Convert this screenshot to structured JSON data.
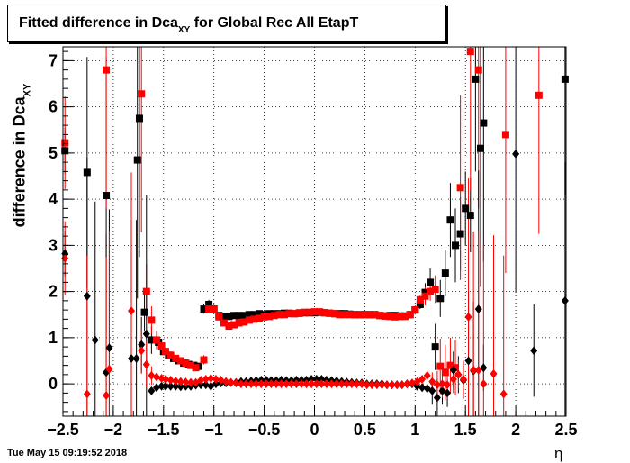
{
  "title": {
    "main": "Fitted difference in Dca",
    "sub": "XY",
    "rest": " for Global Rec All EtapT"
  },
  "ylabel": {
    "main": "difference in Dca",
    "sub": "XY"
  },
  "xlabel": "η",
  "timestamp": "Tue May 15 09:19:52 2018",
  "chart_data": {
    "type": "scatter",
    "xlim": [
      -2.5,
      2.5
    ],
    "ylim": [
      -0.7,
      7.3
    ],
    "grid": true,
    "xticks": [
      -2.5,
      -2,
      -1.5,
      -1,
      -0.5,
      0,
      0.5,
      1,
      1.5,
      2,
      2.5
    ],
    "xtick_labels": [
      "−2.5",
      "−2",
      "−1.5",
      "−1",
      "−0.5",
      "0",
      "0.5",
      "1",
      "1.5",
      "2",
      "2.5"
    ],
    "yticks": [
      0,
      1,
      2,
      3,
      4,
      5,
      6,
      7
    ],
    "ytick_labels": [
      "0",
      "1",
      "2",
      "3",
      "4",
      "5",
      "6",
      "7"
    ],
    "series": [
      {
        "color": "#000000",
        "marker": "square",
        "x": [
          -2.48,
          -2.26,
          -2.07,
          -1.76,
          -1.74,
          -1.69,
          -1.62,
          -1.55,
          -1.5,
          -1.45,
          -1.4,
          -1.35,
          -1.3,
          -1.25,
          -1.2,
          -1.15,
          -1.1,
          -1.05,
          -1.0,
          -0.95,
          -0.9,
          -0.85,
          -0.8,
          -0.75,
          -0.7,
          -0.65,
          -0.6,
          -0.55,
          -0.5,
          -0.45,
          -0.4,
          -0.35,
          -0.3,
          -0.25,
          -0.2,
          -0.15,
          -0.1,
          -0.05,
          0.0,
          0.05,
          0.1,
          0.15,
          0.2,
          0.25,
          0.3,
          0.35,
          0.4,
          0.45,
          0.5,
          0.55,
          0.6,
          0.65,
          0.7,
          0.75,
          0.8,
          0.85,
          0.9,
          0.95,
          1.0,
          1.05,
          1.1,
          1.15,
          1.2,
          1.25,
          1.3,
          1.35,
          1.4,
          1.45,
          1.5,
          1.55,
          1.6,
          1.65,
          1.68,
          2.49
        ],
        "y": [
          5.05,
          4.58,
          4.08,
          4.85,
          5.75,
          1.55,
          0.95,
          0.9,
          0.7,
          0.62,
          0.55,
          0.5,
          0.45,
          0.42,
          0.4,
          0.38,
          1.62,
          1.72,
          1.62,
          1.48,
          1.45,
          1.46,
          1.48,
          1.48,
          1.48,
          1.5,
          1.5,
          1.52,
          1.5,
          1.52,
          1.52,
          1.52,
          1.53,
          1.53,
          1.52,
          1.53,
          1.54,
          1.54,
          1.54,
          1.55,
          1.54,
          1.53,
          1.52,
          1.52,
          1.52,
          1.51,
          1.5,
          1.5,
          1.5,
          1.5,
          1.5,
          1.48,
          1.47,
          1.48,
          1.48,
          1.47,
          1.47,
          1.5,
          1.6,
          1.72,
          1.98,
          2.2,
          0.8,
          1.85,
          2.4,
          3.55,
          3.0,
          3.25,
          3.8,
          3.65,
          6.6,
          5.1,
          5.65,
          6.6
        ],
        "err": [
          0.5,
          2.5,
          3,
          3,
          3,
          0.4,
          0.3,
          0,
          0,
          0,
          0,
          0,
          0,
          0,
          0,
          0,
          0.1,
          0.1,
          0,
          0,
          0,
          0,
          0,
          0,
          0,
          0,
          0,
          0,
          0,
          0,
          0,
          0,
          0,
          0,
          0,
          0,
          0,
          0,
          0,
          0,
          0,
          0,
          0,
          0,
          0,
          0,
          0,
          0,
          0,
          0,
          0,
          0,
          0,
          0,
          0,
          0,
          0,
          0,
          0,
          0.1,
          0.2,
          0.3,
          0.5,
          0.4,
          0.5,
          0.8,
          0.8,
          0.8,
          0.8,
          0.8,
          2,
          3,
          3,
          2.5
        ]
      },
      {
        "color": "#ff0000",
        "marker": "square",
        "x": [
          -2.48,
          -2.07,
          -1.72,
          -1.67,
          -1.62,
          -1.57,
          -1.52,
          -1.48,
          -1.43,
          -1.38,
          -1.33,
          -1.28,
          -1.23,
          -1.18,
          -1.1,
          -1.05,
          -1.0,
          -0.95,
          -0.9,
          -0.85,
          -0.8,
          -0.75,
          -0.7,
          -0.65,
          -0.6,
          -0.55,
          -0.5,
          -0.45,
          -0.4,
          -0.35,
          -0.3,
          -0.25,
          -0.2,
          -0.15,
          -0.1,
          -0.05,
          0.0,
          0.05,
          0.1,
          0.15,
          0.2,
          0.25,
          0.3,
          0.35,
          0.4,
          0.45,
          0.5,
          0.55,
          0.6,
          0.65,
          0.7,
          0.75,
          0.8,
          0.85,
          0.9,
          0.95,
          1.0,
          1.05,
          1.1,
          1.15,
          1.2,
          1.25,
          1.3,
          1.35,
          1.4,
          1.45,
          1.55,
          1.63,
          1.9,
          2.23
        ],
        "y": [
          5.22,
          6.8,
          6.28,
          2.0,
          1.38,
          0.95,
          0.82,
          0.7,
          0.62,
          0.55,
          0.5,
          0.45,
          0.4,
          0.35,
          0.52,
          1.62,
          1.62,
          1.45,
          1.32,
          1.25,
          1.28,
          1.32,
          1.34,
          1.38,
          1.4,
          1.42,
          1.45,
          1.46,
          1.48,
          1.5,
          1.5,
          1.52,
          1.52,
          1.54,
          1.55,
          1.55,
          1.56,
          1.56,
          1.54,
          1.53,
          1.52,
          1.5,
          1.5,
          1.5,
          1.5,
          1.5,
          1.5,
          1.5,
          1.5,
          1.48,
          1.47,
          1.46,
          1.45,
          1.46,
          1.46,
          1.5,
          1.6,
          1.82,
          1.9,
          2.0,
          2.05,
          0.38,
          0.25,
          0.4,
          0.35,
          4.25,
          7.2,
          6.8,
          5.4,
          6.25
        ],
        "err": [
          1,
          3,
          3,
          0.6,
          0.3,
          0.2,
          0,
          0,
          0,
          0,
          0,
          0,
          0,
          0,
          0.1,
          0.1,
          0.1,
          0,
          0,
          0,
          0,
          0,
          0,
          0,
          0,
          0,
          0,
          0,
          0,
          0,
          0,
          0,
          0,
          0,
          0,
          0,
          0,
          0,
          0,
          0,
          0,
          0,
          0,
          0,
          0,
          0,
          0,
          0,
          0,
          0,
          0,
          0,
          0,
          0,
          0,
          0,
          0.1,
          0.1,
          0.2,
          0.2,
          0.3,
          0.6,
          0.6,
          0.6,
          0.6,
          2,
          3,
          3,
          3,
          3
        ]
      },
      {
        "color": "#000000",
        "marker": "diamond",
        "x": [
          -2.48,
          -2.26,
          -2.18,
          -2.07,
          -2.04,
          -1.82,
          -1.77,
          -1.72,
          -1.67,
          -1.62,
          -1.57,
          -1.52,
          -1.48,
          -1.43,
          -1.38,
          -1.33,
          -1.28,
          -1.23,
          -1.18,
          -1.13,
          -1.08,
          -1.03,
          -0.98,
          -0.93,
          -0.88,
          -0.83,
          -0.78,
          -0.73,
          -0.68,
          -0.63,
          -0.58,
          -0.53,
          -0.48,
          -0.43,
          -0.38,
          -0.33,
          -0.28,
          -0.23,
          -0.18,
          -0.13,
          -0.08,
          -0.03,
          0.02,
          0.07,
          0.12,
          0.17,
          0.22,
          0.27,
          0.32,
          0.37,
          0.42,
          0.47,
          0.52,
          0.57,
          0.62,
          0.67,
          0.72,
          0.77,
          0.82,
          0.87,
          0.92,
          0.97,
          1.02,
          1.07,
          1.12,
          1.17,
          1.22,
          1.27,
          1.32,
          1.38,
          1.43,
          1.48,
          1.53,
          1.58,
          1.63,
          1.68,
          2.0,
          2.18,
          2.49
        ],
        "y": [
          2.82,
          1.9,
          0.95,
          0.25,
          0.78,
          0.55,
          0.55,
          0.85,
          1.08,
          -0.15,
          -0.08,
          -0.05,
          -0.05,
          -0.05,
          -0.05,
          -0.06,
          -0.05,
          -0.05,
          -0.03,
          -0.02,
          -0.02,
          -0.05,
          0.0,
          0.02,
          0.02,
          0.03,
          0.03,
          0.05,
          0.05,
          0.06,
          0.07,
          0.08,
          0.08,
          0.07,
          0.07,
          0.08,
          0.07,
          0.07,
          0.08,
          0.08,
          0.08,
          0.1,
          0.1,
          0.1,
          0.08,
          0.07,
          0.06,
          0.05,
          0.04,
          0.03,
          0.02,
          0.02,
          0.0,
          0.0,
          0.0,
          0.0,
          -0.02,
          -0.02,
          -0.02,
          -0.02,
          0.0,
          0.0,
          -0.05,
          -0.08,
          -0.1,
          -0.15,
          -0.3,
          -0.15,
          -0.2,
          0.3,
          0.2,
          0.08,
          0.5,
          0.28,
          1.62,
          0.35,
          4.98,
          0.72,
          1.8
        ],
        "err": [
          0.5,
          3,
          3,
          3,
          3,
          3,
          3,
          0.6,
          3,
          0.05,
          0.05,
          0,
          0,
          0,
          0,
          0,
          0,
          0,
          0,
          0,
          0,
          0,
          0,
          0,
          0,
          0,
          0,
          0,
          0,
          0,
          0,
          0,
          0,
          0,
          0,
          0,
          0,
          0,
          0,
          0,
          0,
          0,
          0,
          0,
          0,
          0,
          0,
          0,
          0,
          0,
          0,
          0,
          0,
          0,
          0,
          0,
          0,
          0,
          0,
          0,
          0,
          0,
          0,
          0,
          0.1,
          0.3,
          0.4,
          0.3,
          0.3,
          0.4,
          0.4,
          0.4,
          1.5,
          1.5,
          3,
          0.5,
          3,
          1,
          3
        ]
      },
      {
        "color": "#ff0000",
        "marker": "diamond",
        "x": [
          -2.48,
          -2.26,
          -2.07,
          -2.04,
          -1.82,
          -1.72,
          -1.67,
          -1.62,
          -1.57,
          -1.52,
          -1.48,
          -1.43,
          -1.38,
          -1.33,
          -1.28,
          -1.23,
          -1.18,
          -1.13,
          -1.08,
          -1.03,
          -0.98,
          -0.93,
          -0.88,
          -0.83,
          -0.78,
          -0.73,
          -0.68,
          -0.63,
          -0.58,
          -0.53,
          -0.48,
          -0.43,
          -0.38,
          -0.33,
          -0.28,
          -0.23,
          -0.18,
          -0.13,
          -0.08,
          -0.03,
          0.02,
          0.07,
          0.12,
          0.17,
          0.22,
          0.27,
          0.32,
          0.37,
          0.42,
          0.47,
          0.52,
          0.57,
          0.62,
          0.67,
          0.72,
          0.77,
          0.82,
          0.87,
          0.92,
          0.97,
          1.02,
          1.07,
          1.12,
          1.17,
          1.22,
          1.27,
          1.32,
          1.38,
          1.43,
          1.48,
          1.53,
          1.58,
          1.63,
          1.68,
          1.78,
          1.88
        ],
        "y": [
          2.72,
          -0.22,
          -0.25,
          0.32,
          1.58,
          0.72,
          0.42,
          0.18,
          0.15,
          0.12,
          0.1,
          0.08,
          0.06,
          0.05,
          0.04,
          0.03,
          0.03,
          0.08,
          0.1,
          0.12,
          0.1,
          0.08,
          0.05,
          0.03,
          0.02,
          0.0,
          0.0,
          0.0,
          0.0,
          0.0,
          0.0,
          0.0,
          0.0,
          0.0,
          0.0,
          0.0,
          0.0,
          0.0,
          0.0,
          0.0,
          0.0,
          0.0,
          0.0,
          0.0,
          0.0,
          0.0,
          0.0,
          0.0,
          0.0,
          0.0,
          -0.02,
          -0.02,
          -0.02,
          -0.02,
          -0.02,
          -0.02,
          -0.02,
          -0.02,
          0.0,
          0.02,
          0.05,
          0.1,
          0.18,
          0.05,
          -0.02,
          0.0,
          -0.02,
          0.1,
          0.2,
          0.1,
          1.45,
          0.3,
          0.3,
          0.0,
          0.22,
          -0.22
        ],
        "err": [
          0.8,
          3,
          3,
          3,
          3,
          0.5,
          0.5,
          0.2,
          0,
          0,
          0,
          0,
          0,
          0,
          0,
          0,
          0,
          0,
          0,
          0,
          0,
          0,
          0,
          0,
          0,
          0,
          0,
          0,
          0,
          0,
          0,
          0,
          0,
          0,
          0,
          0,
          0,
          0,
          0,
          0,
          0,
          0,
          0,
          0,
          0,
          0,
          0,
          0,
          0,
          0,
          0,
          0,
          0,
          0,
          0,
          0,
          0,
          0,
          0,
          0,
          0,
          0,
          0,
          0.2,
          0.3,
          0.3,
          0.3,
          0.3,
          0.3,
          0.4,
          3,
          3,
          3,
          3,
          3,
          3
        ]
      }
    ]
  }
}
